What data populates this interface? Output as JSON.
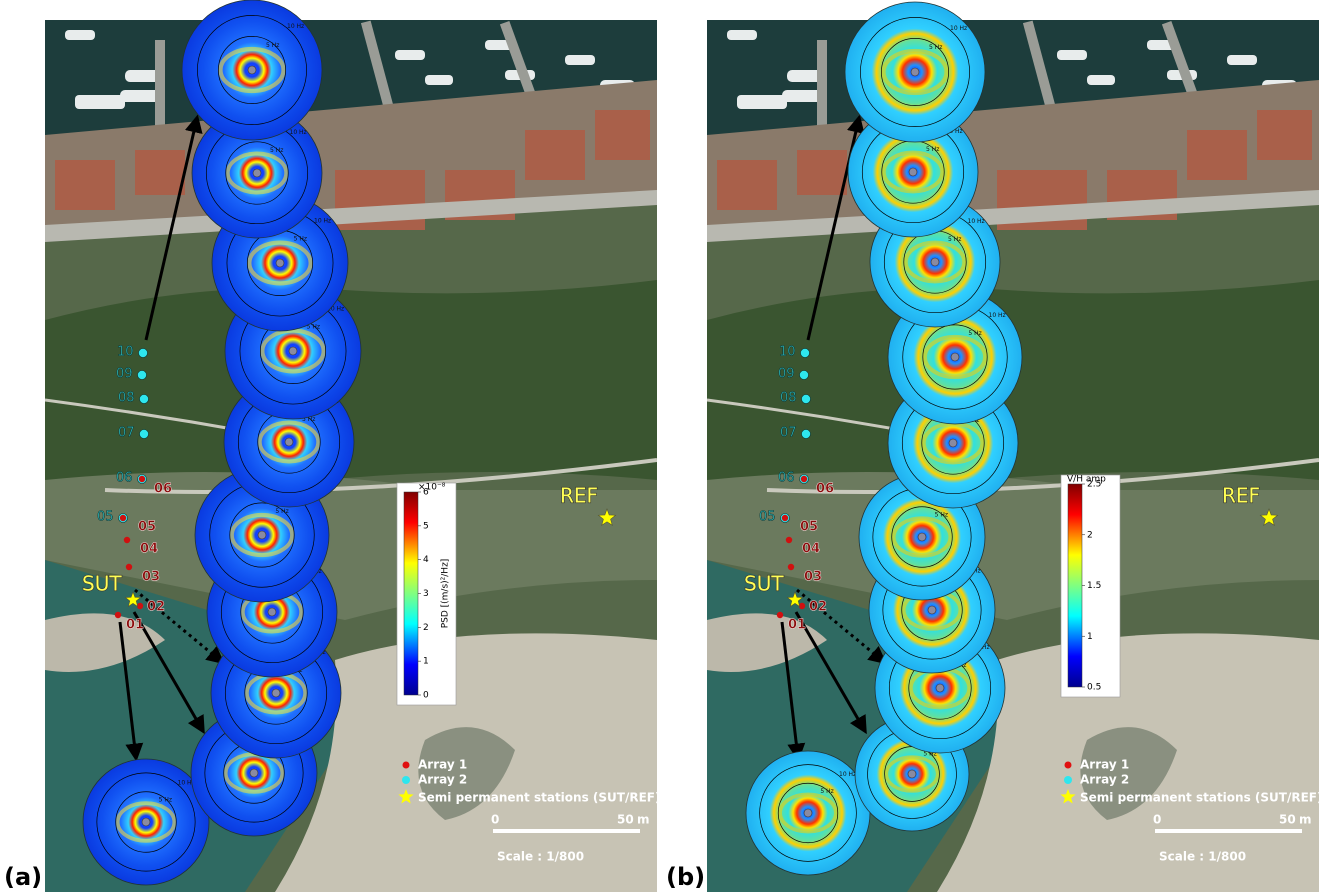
{
  "panels": [
    {
      "label": "(a)",
      "array2_labels": [
        "10",
        "09",
        "08",
        "07",
        "06",
        "05"
      ],
      "array1_labels": [
        "06",
        "05",
        "04",
        "03",
        "02",
        "01"
      ],
      "sites": [
        "SUT",
        "REF"
      ],
      "polar_labels": [
        "10 Hz",
        "5 Hz"
      ],
      "colorbar": {
        "title": "PSD [(m/s)²/Hz]",
        "exponent": "×10⁻⁸",
        "ticks": [
          "0",
          "1",
          "2",
          "3",
          "4",
          "5",
          "6"
        ]
      },
      "legend": [
        "Array 1",
        "Array 2",
        "Semi permanent stations (SUT/REF)"
      ],
      "scale": {
        "start": "0",
        "end": "50",
        "unit": "m",
        "ratio": "Scale : 1/800"
      }
    },
    {
      "label": "(b)",
      "array2_labels": [
        "10",
        "09",
        "08",
        "07",
        "06",
        "05"
      ],
      "array1_labels": [
        "06",
        "05",
        "04",
        "03",
        "02",
        "01"
      ],
      "sites": [
        "SUT",
        "REF"
      ],
      "polar_labels": [
        "10 Hz",
        "5 Hz"
      ],
      "colorbar": {
        "title": "V/H amp",
        "ticks": [
          "0.5",
          "1",
          "1.5",
          "2",
          "2.5"
        ]
      },
      "legend": [
        "Array 1",
        "Array 2",
        "Semi permanent stations (SUT/REF)"
      ],
      "scale": {
        "start": "0",
        "end": "50",
        "unit": "m",
        "ratio": "Scale : 1/800"
      }
    }
  ]
}
